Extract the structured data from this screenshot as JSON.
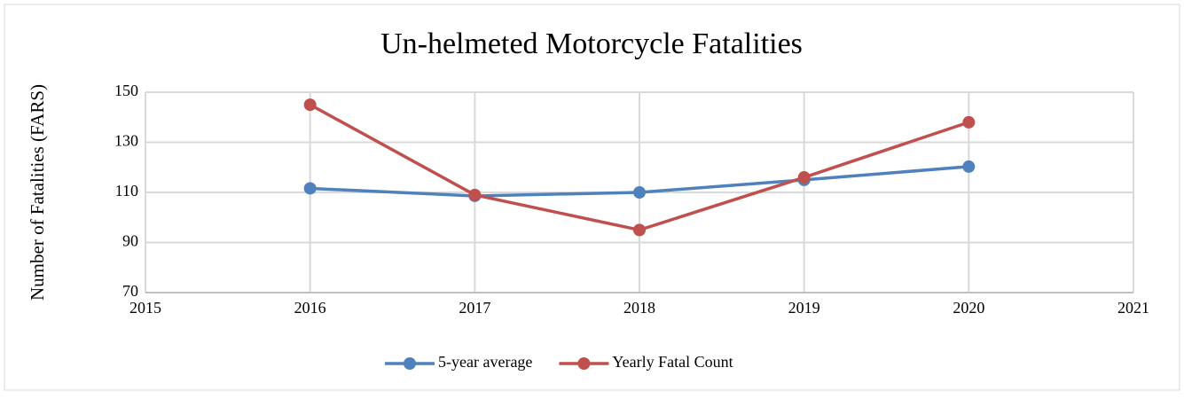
{
  "chart_data": {
    "type": "line",
    "title": "Un-helmeted Motorcycle Fatalities",
    "y_label": "Number of Fatalities (FARS)",
    "x": [
      2016,
      2017,
      2018,
      2019,
      2020
    ],
    "series": [
      {
        "name": "5-year average",
        "color": "#4f81bd",
        "values": [
          111.6,
          108.6,
          110,
          115,
          120.3
        ]
      },
      {
        "name": "Yearly Fatal Count",
        "color": "#c0504d",
        "values": [
          145,
          109,
          95,
          116,
          138
        ]
      }
    ],
    "xlim": [
      2015,
      2021
    ],
    "xticks": [
      2015,
      2016,
      2017,
      2018,
      2019,
      2020,
      2021
    ],
    "ylim": [
      70,
      150
    ],
    "yticks": [
      70,
      90,
      110,
      130,
      150
    ],
    "grid": true,
    "legend": "bottom"
  }
}
